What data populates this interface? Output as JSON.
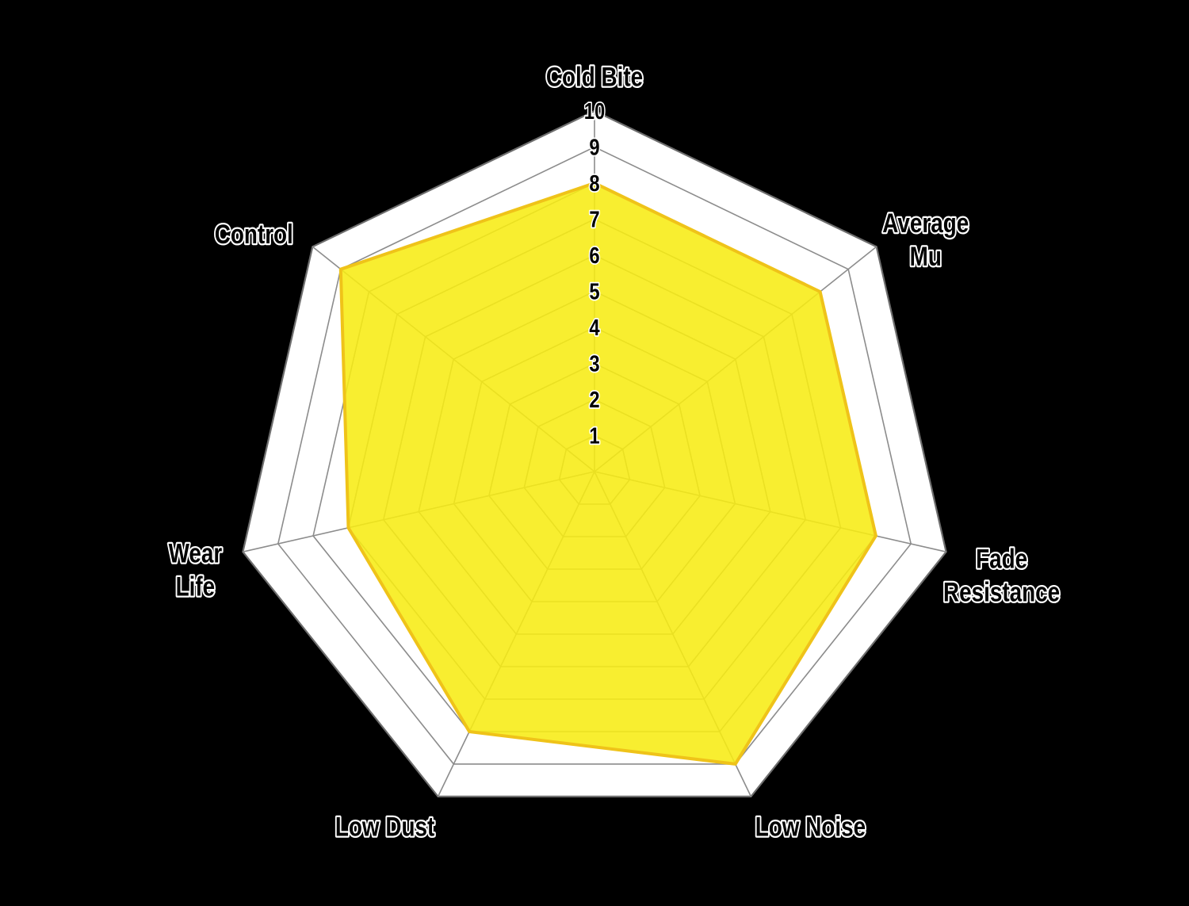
{
  "chart_data": {
    "type": "radar",
    "title": "",
    "categories": [
      "Cold Bite",
      "Average Mu",
      "Fade Resistance",
      "Low Noise",
      "Low Dust",
      "Wear Life",
      "Control"
    ],
    "category_label_lines": [
      [
        "Cold Bite"
      ],
      [
        "Average",
        "Mu"
      ],
      [
        "Fade",
        "Resistance"
      ],
      [
        "Low Noise"
      ],
      [
        "Low Dust"
      ],
      [
        "Wear",
        "Life"
      ],
      [
        "Control"
      ]
    ],
    "values": [
      8,
      8,
      8,
      9,
      8,
      7,
      9
    ],
    "ticks": [
      "1",
      "2",
      "3",
      "4",
      "5",
      "6",
      "7",
      "8",
      "9",
      "10"
    ],
    "axis_range": [
      0,
      10
    ],
    "num_axes": 7,
    "legend": "none",
    "grid": "on",
    "colors": {
      "background": "#000000",
      "ring_fill": "#ffffff",
      "grid_line": "#8c8c8c",
      "outer_grid_line": "#6e6e6e",
      "data_fill": "#f7ec13",
      "data_stroke": "#efc319",
      "label_fill": "#000000",
      "label_outline": "#ffffff"
    }
  }
}
